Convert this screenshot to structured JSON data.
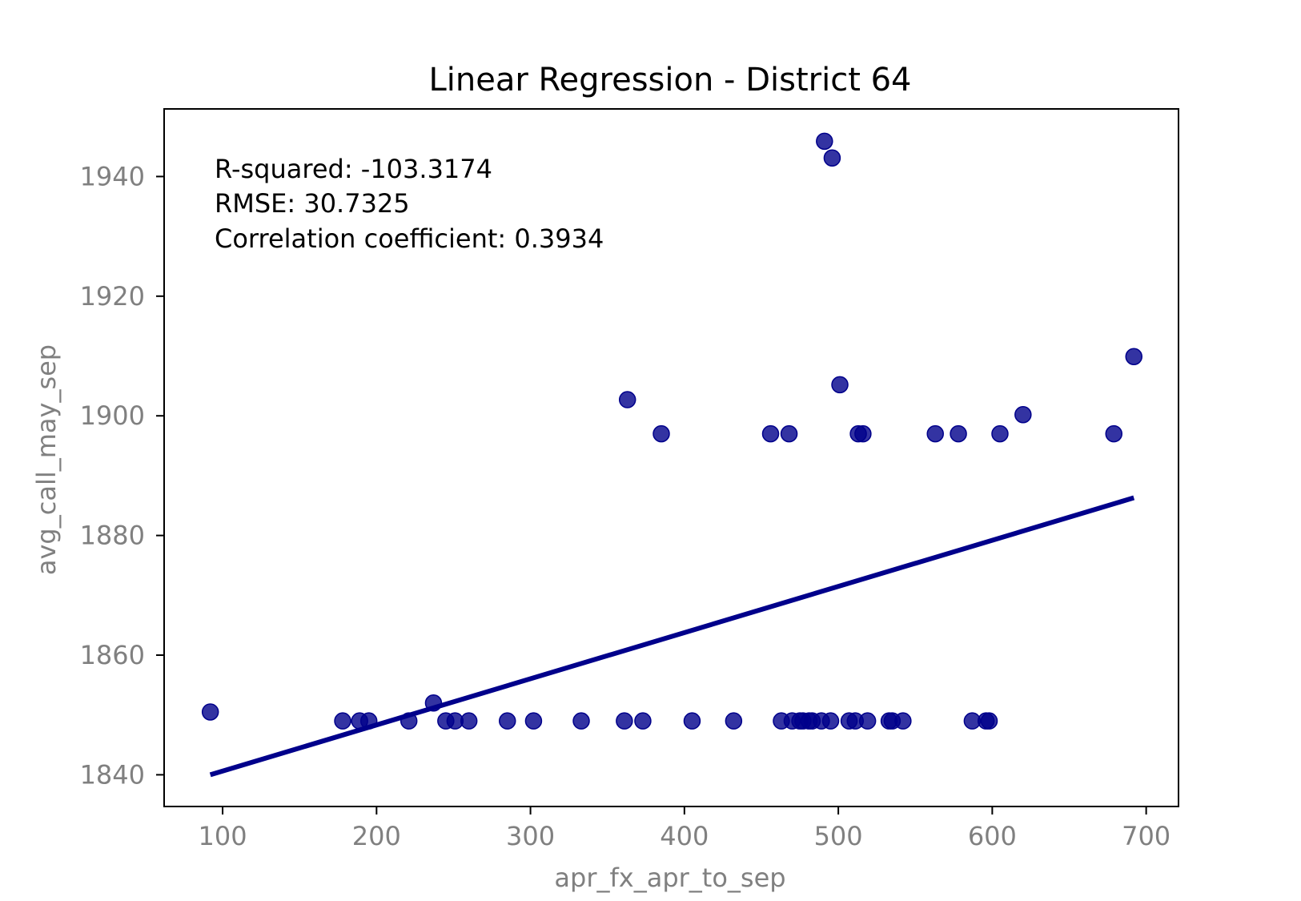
{
  "chart_data": {
    "type": "scatter",
    "title": "Linear Regression - District 64",
    "xlabel": "apr_fx_apr_to_sep",
    "ylabel": "avg_call_may_sep",
    "xlim": [
      62,
      721
    ],
    "ylim": [
      1834.7,
      1951.3
    ],
    "x_ticks": [
      100,
      200,
      300,
      400,
      500,
      600,
      700
    ],
    "y_ticks": [
      1840,
      1860,
      1880,
      1900,
      1920,
      1940
    ],
    "grid": false,
    "annotations": [
      "R-squared: -103.3174",
      "RMSE: 30.7325",
      "Correlation coefficient: 0.3934"
    ],
    "marker_color": "#00008B",
    "line_color": "#00008B",
    "series": [
      {
        "kind": "points",
        "x": [
          92,
          178,
          189,
          195,
          221,
          237,
          245,
          251,
          260,
          285,
          302,
          333,
          361,
          363,
          373,
          385,
          405,
          432,
          456,
          463,
          468,
          470,
          475,
          477,
          481,
          483,
          489,
          491,
          495,
          496,
          501,
          507,
          511,
          513,
          516,
          519,
          533,
          535,
          542,
          563,
          578,
          587,
          596,
          598,
          605,
          620,
          679,
          692
        ],
        "y": [
          1850.5,
          1849,
          1849,
          1849,
          1849,
          1852,
          1849,
          1849,
          1849,
          1849,
          1849,
          1849,
          1849,
          1902.7,
          1849,
          1897,
          1849,
          1849,
          1897,
          1849,
          1897,
          1849,
          1849,
          1849,
          1849,
          1849,
          1849,
          1945.9,
          1849,
          1943.1,
          1905.2,
          1849,
          1849,
          1897,
          1897,
          1849,
          1849,
          1849,
          1849,
          1897,
          1897,
          1849,
          1849,
          1849,
          1897,
          1900.2,
          1897,
          1909.9
        ]
      },
      {
        "kind": "regression-line",
        "x": [
          92,
          692
        ],
        "y": [
          1840.0,
          1886.3
        ]
      }
    ]
  }
}
